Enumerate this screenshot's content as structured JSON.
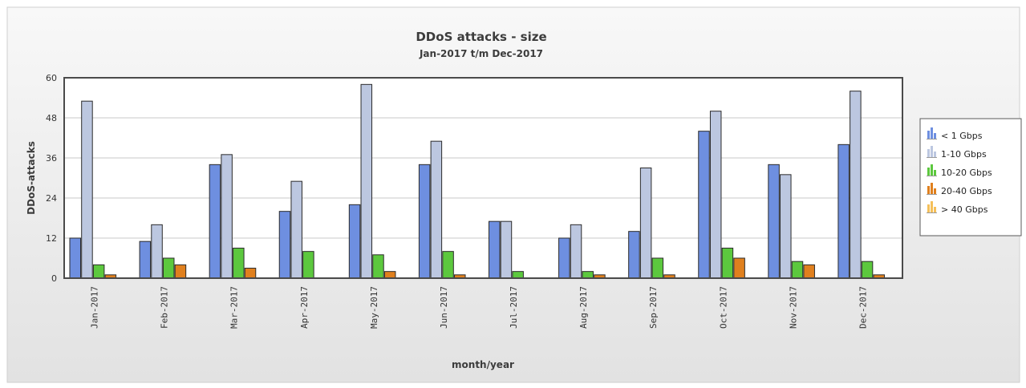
{
  "chart_data": {
    "type": "bar",
    "title": "DDoS attacks - size",
    "subtitle": "Jan-2017 t/m Dec-2017",
    "xlabel": "month/year",
    "ylabel": "DDoS-attacks",
    "ylim": [
      0,
      60
    ],
    "yticks": [
      0,
      12,
      24,
      36,
      48,
      60
    ],
    "grid": true,
    "legend_position": "right",
    "categories": [
      "Jan-2017",
      "Feb-2017",
      "Mar-2017",
      "Apr-2017",
      "May-2017",
      "Jun-2017",
      "Jul-2017",
      "Aug-2017",
      "Sep-2017",
      "Oct-2017",
      "Nov-2017",
      "Dec-2017"
    ],
    "series": [
      {
        "name": "< 1 Gbps",
        "color": "#6e8fe0",
        "values": [
          12,
          11,
          34,
          20,
          22,
          34,
          17,
          12,
          14,
          44,
          34,
          40
        ]
      },
      {
        "name": "1-10 Gbps",
        "color": "#bcc7e0",
        "values": [
          53,
          16,
          37,
          29,
          58,
          41,
          17,
          16,
          33,
          50,
          31,
          56
        ]
      },
      {
        "name": "10-20 Gbps",
        "color": "#5cc83e",
        "values": [
          4,
          6,
          9,
          8,
          7,
          8,
          2,
          2,
          6,
          9,
          5,
          5
        ]
      },
      {
        "name": "20-40 Gbps",
        "color": "#e0801e",
        "values": [
          1,
          4,
          3,
          0,
          2,
          1,
          0,
          1,
          1,
          6,
          4,
          1
        ]
      },
      {
        "name": "> 40 Gbps",
        "color": "#f5c05a",
        "values": [
          0,
          0,
          0,
          0,
          0,
          0,
          0,
          0,
          0,
          0,
          0,
          0
        ]
      }
    ]
  }
}
